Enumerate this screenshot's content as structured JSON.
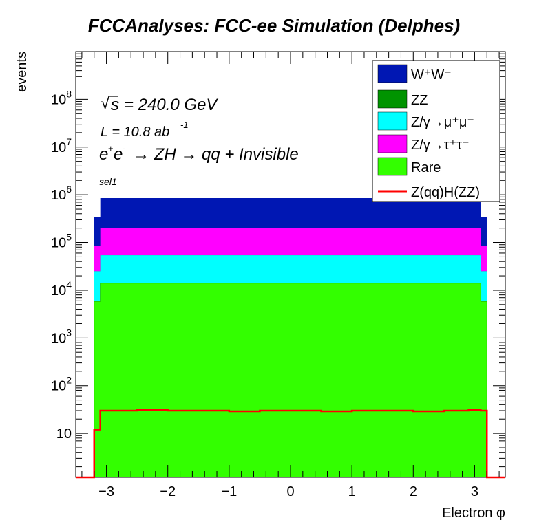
{
  "title": "FCCAnalyses: FCC-ee Simulation (Delphes)",
  "annotations": {
    "sqrt_s": "= 240.0 GeV",
    "lumi": "L = 10.8 ab",
    "lumi_exp": "-1",
    "process": "→ ZH → qq + Invisible",
    "selection": "sel1"
  },
  "chart_data": {
    "type": "bar",
    "stacked": true,
    "log_y": true,
    "grid": false,
    "legend_position": "top-right",
    "xlabel": "Electron φ",
    "ylabel": "events",
    "xlim": [
      -3.5,
      3.5
    ],
    "ylim": [
      1.2,
      1000000000
    ],
    "x_ticks": [
      -3,
      -2,
      -1,
      0,
      1,
      2,
      3
    ],
    "x_tick_labels": [
      "−3",
      "−2",
      "−1",
      "0",
      "1",
      "2",
      "3"
    ],
    "y_ticks": [
      10,
      100,
      1000,
      10000,
      100000,
      1000000,
      10000000,
      100000000
    ],
    "y_tick_labels": [
      "10",
      "10^2",
      "10^3",
      "10^4",
      "10^5",
      "10^6",
      "10^7",
      "10^8"
    ],
    "bin_edges": [
      -3.2,
      -3.1,
      3.1,
      3.2
    ],
    "stack_order": [
      "Rare",
      "Z/γ→μ+μ-",
      "ZZ",
      "Z/γ→τ+τ-",
      "W+W-"
    ],
    "series": [
      {
        "name": "W+W-",
        "legend_label": "W⁺W⁻",
        "color": "#0017b3",
        "cumulative_values": [
          340000,
          850000,
          340000
        ]
      },
      {
        "name": "ZZ",
        "legend_label": "ZZ",
        "color": "#009400",
        "cumulative_values": [
          25000,
          54000,
          25000
        ]
      },
      {
        "name": "Z/γ→μ+μ-",
        "legend_label": "Z/γ→μ⁺μ⁻",
        "color": "#00ffff",
        "cumulative_values": [
          25000,
          54000,
          25000
        ]
      },
      {
        "name": "Z/γ→τ+τ-",
        "legend_label": "Z/γ→τ⁺τ⁻",
        "color": "#ff00ff",
        "cumulative_values": [
          85000,
          200000,
          85000
        ]
      },
      {
        "name": "Rare",
        "legend_label": "Rare",
        "color": "#33ff00",
        "cumulative_values": [
          5800,
          14000,
          5800
        ]
      }
    ],
    "signal": {
      "name": "Z(qq)H(ZZ)",
      "color": "#ff0000",
      "x": [
        -3.2,
        -3.1,
        -2.9,
        -2.5,
        -2.0,
        -1.5,
        -1.0,
        -0.5,
        0.0,
        0.5,
        1.0,
        1.5,
        2.0,
        2.5,
        2.9,
        3.1,
        3.2
      ],
      "values": [
        12,
        30,
        30,
        31,
        30,
        30,
        29,
        30,
        30,
        29,
        30,
        30,
        29,
        30,
        31,
        30,
        12
      ]
    }
  }
}
